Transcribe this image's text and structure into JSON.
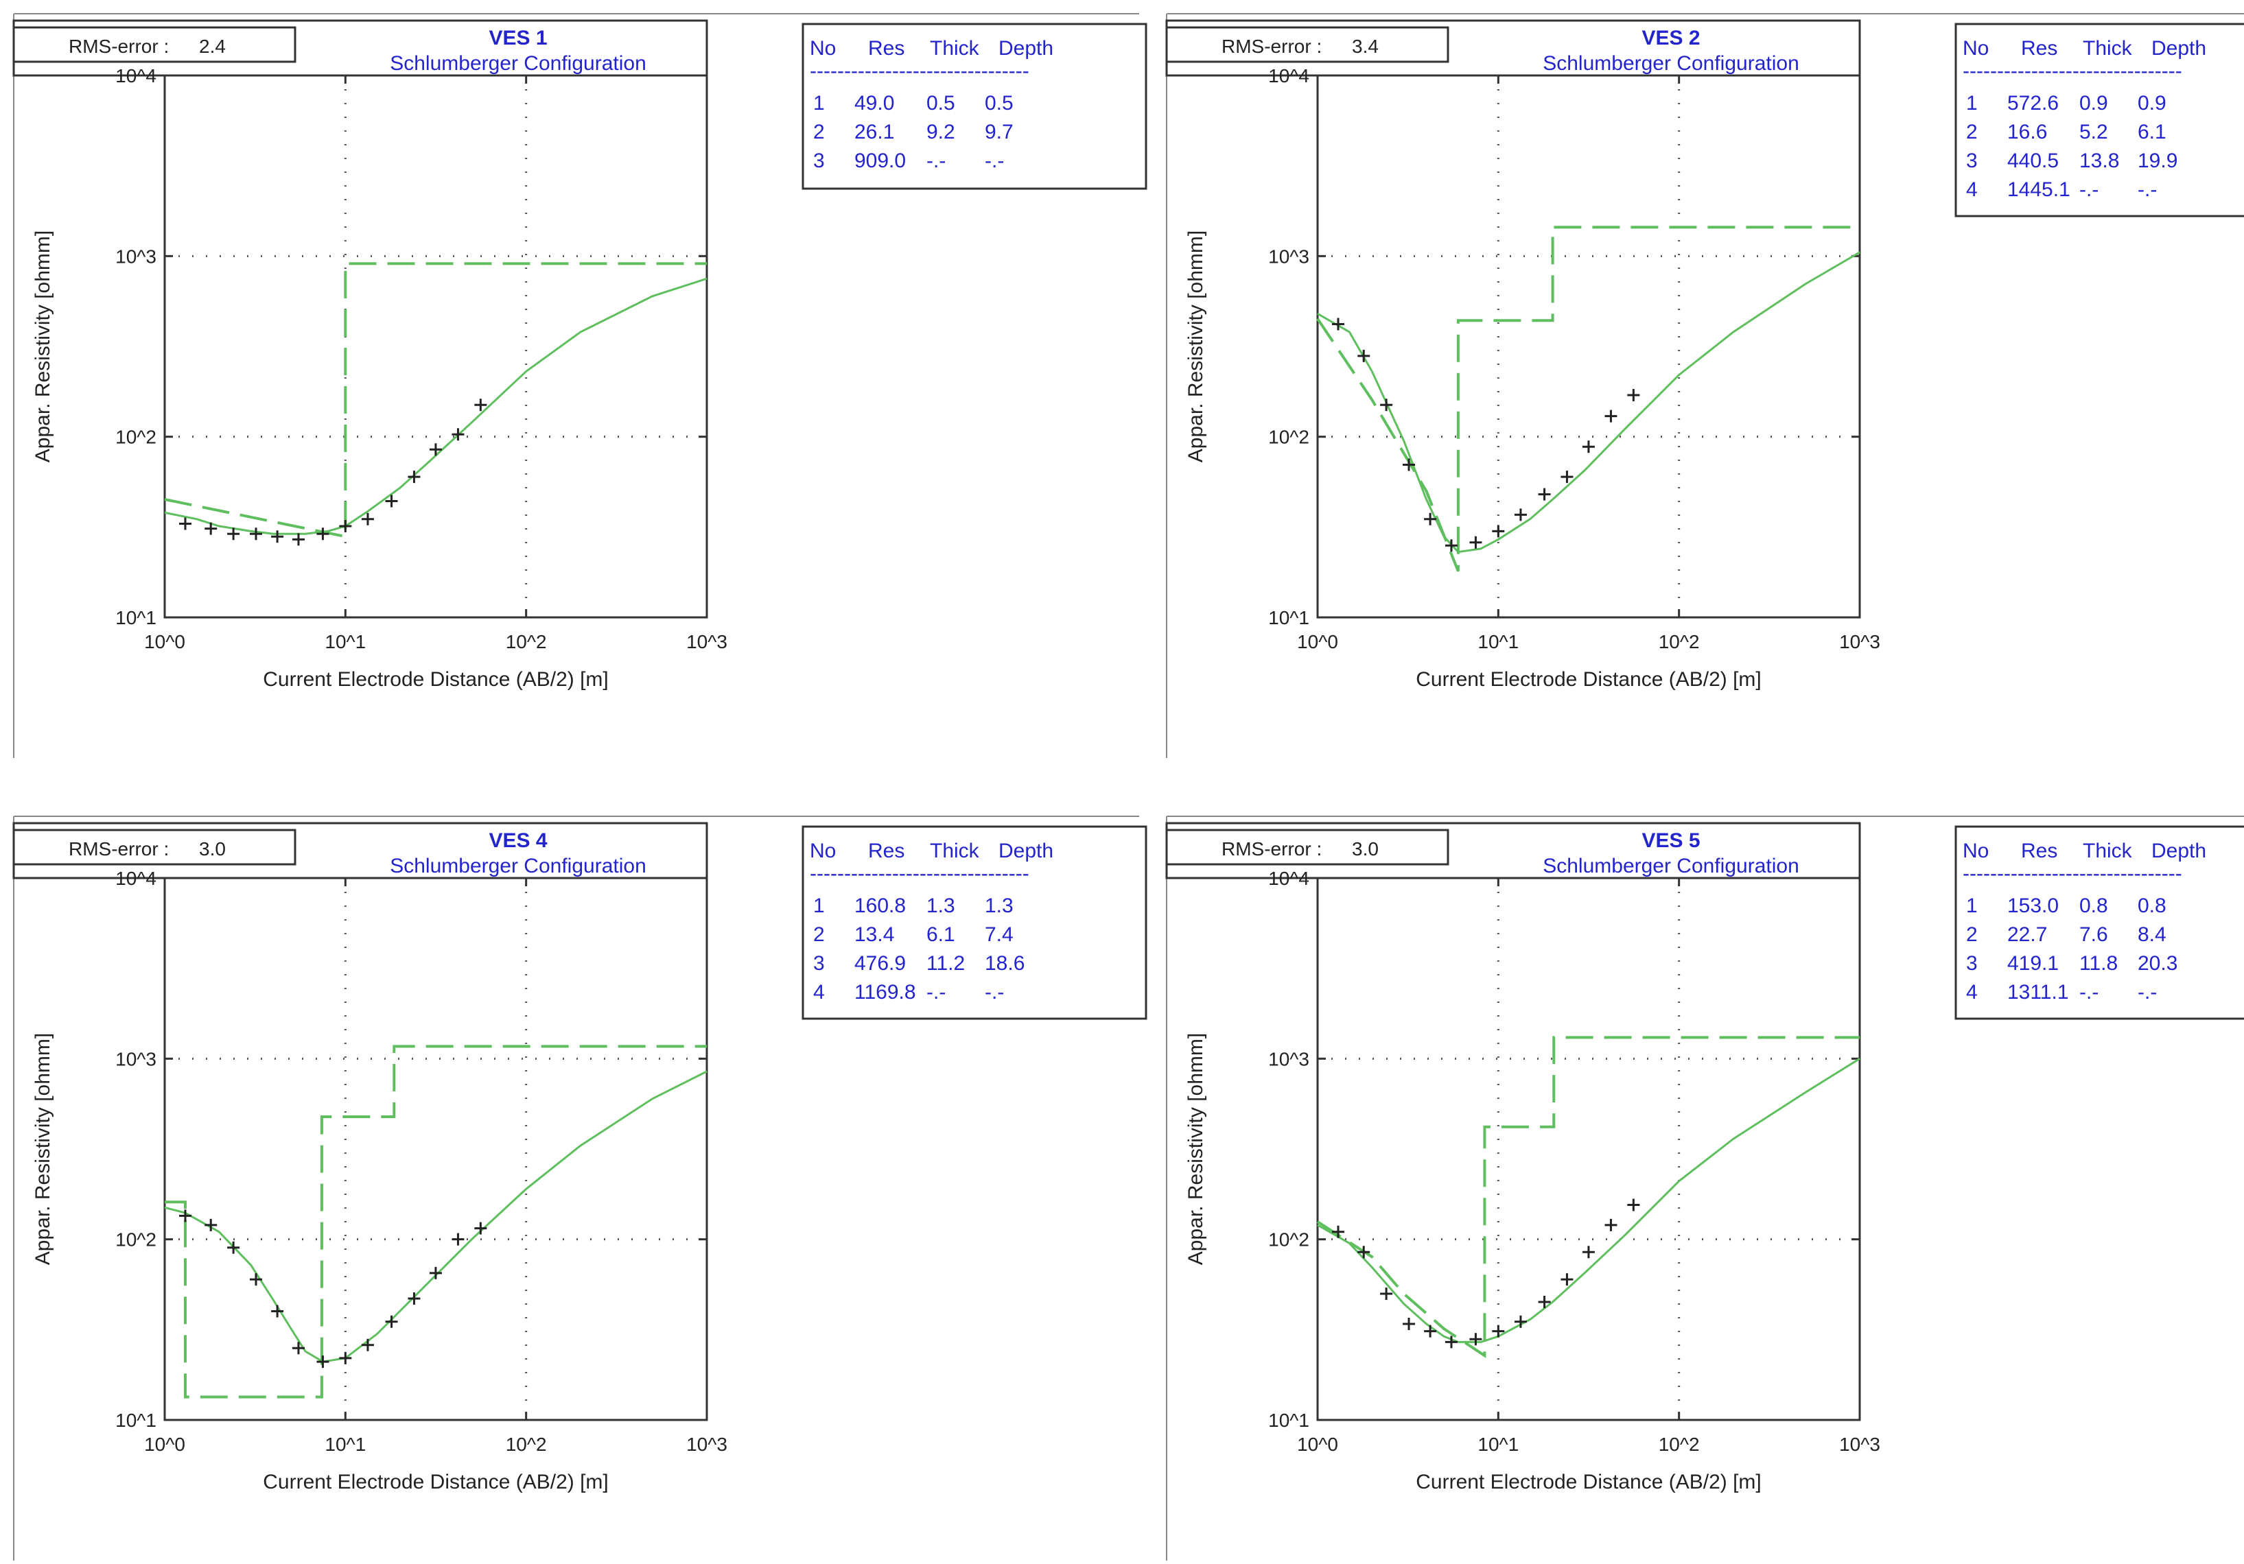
{
  "figure": {
    "x_label": "Current Electrode Distance (AB/2) [m]",
    "y_label": "Appar. Resistivity [ohmm]",
    "x_ticks": [
      "10^0",
      "10^1",
      "10^2",
      "10^3"
    ],
    "y_ticks": [
      "10^1",
      "10^2",
      "10^3",
      "10^4"
    ],
    "rms_label": "RMS-error :",
    "table_headers": [
      "No",
      "Res",
      "Thick",
      "Depth"
    ],
    "table_separator": "--------------------------------",
    "colors": {
      "curve": "#5fbf5f",
      "model": "#5fbf5f",
      "points": "#222222",
      "title": "#2424cc",
      "grid": "#555555"
    }
  },
  "chart_data": [
    {
      "type": "line",
      "title": "VES 1",
      "subtitle": "Schlumberger Configuration",
      "rms_error": "2.4",
      "xlabel": "Current Electrode Distance (AB/2) [m]",
      "ylabel": "Appar. Resistivity [ohmm]",
      "x_scale": "log",
      "y_scale": "log",
      "xlim": [
        1,
        1000
      ],
      "ylim": [
        10,
        10000
      ],
      "layers": [
        {
          "no": "1",
          "res": "49.0",
          "thick": "0.5",
          "depth": "0.5"
        },
        {
          "no": "2",
          "res": "26.1",
          "thick": "9.2",
          "depth": "9.7"
        },
        {
          "no": "3",
          "res": "909.0",
          "thick": "-.-",
          "depth": "-.-"
        }
      ],
      "model_steps": [
        [
          1,
          45
        ],
        [
          10,
          28
        ],
        [
          10,
          909
        ],
        [
          1000,
          909
        ]
      ],
      "calculated_curve": {
        "x": [
          1,
          1.5,
          2,
          3,
          4,
          5,
          6,
          8,
          10,
          13,
          20,
          30,
          50,
          100,
          200,
          500,
          1000
        ],
        "y": [
          38,
          35,
          32,
          30,
          29,
          29,
          29,
          30,
          32,
          38,
          52,
          75,
          120,
          230,
          380,
          600,
          750
        ]
      },
      "observed": {
        "x": [
          1.3,
          1.8,
          2.4,
          3.2,
          4.2,
          5.5,
          7.5,
          10,
          13.3,
          18,
          24,
          31.6,
          42,
          56
        ],
        "y": [
          33,
          31,
          29,
          29,
          28,
          27,
          29,
          32,
          35,
          44,
          60,
          85,
          103,
          150
        ]
      }
    },
    {
      "type": "line",
      "title": "VES 2",
      "subtitle": "Schlumberger Configuration",
      "rms_error": "3.4",
      "xlabel": "Current Electrode Distance (AB/2) [m]",
      "ylabel": "Appar. Resistivity [ohmm]",
      "x_scale": "log",
      "y_scale": "log",
      "xlim": [
        1,
        1000
      ],
      "ylim": [
        10,
        10000
      ],
      "layers": [
        {
          "no": "1",
          "res": "572.6",
          "thick": "0.9",
          "depth": "0.9"
        },
        {
          "no": "2",
          "res": "16.6",
          "thick": "5.2",
          "depth": "6.1"
        },
        {
          "no": "3",
          "res": "440.5",
          "thick": "13.8",
          "depth": "19.9"
        },
        {
          "no": "4",
          "res": "1445.1",
          "thick": "-.-",
          "depth": "-.-"
        }
      ],
      "model_steps": [
        [
          1,
          450
        ],
        [
          2,
          160
        ],
        [
          4,
          50
        ],
        [
          6,
          18
        ],
        [
          6,
          440
        ],
        [
          20,
          440
        ],
        [
          20,
          1445
        ],
        [
          1000,
          1445
        ]
      ],
      "calculated_curve": {
        "x": [
          1,
          1.5,
          2,
          3,
          4,
          5,
          6,
          8,
          10,
          15,
          20,
          30,
          50,
          100,
          200,
          500,
          1000
        ],
        "y": [
          480,
          380,
          230,
          95,
          45,
          28,
          23,
          24,
          27,
          35,
          45,
          65,
          110,
          220,
          380,
          700,
          1050
        ]
      },
      "observed": {
        "x": [
          1.3,
          1.8,
          2.4,
          3.2,
          4.2,
          5.5,
          7.5,
          10,
          13.3,
          18,
          24,
          31.6,
          42,
          56
        ],
        "y": [
          420,
          280,
          150,
          70,
          35,
          25,
          26,
          30,
          37,
          48,
          60,
          88,
          130,
          170
        ]
      }
    },
    {
      "type": "line",
      "title": "VES 4",
      "subtitle": "Schlumberger Configuration",
      "rms_error": "3.0",
      "xlabel": "Current Electrode Distance (AB/2) [m]",
      "ylabel": "Appar. Resistivity [ohmm]",
      "x_scale": "log",
      "y_scale": "log",
      "xlim": [
        1,
        1000
      ],
      "ylim": [
        10,
        10000
      ],
      "layers": [
        {
          "no": "1",
          "res": "160.8",
          "thick": "1.3",
          "depth": "1.3"
        },
        {
          "no": "2",
          "res": "13.4",
          "thick": "6.1",
          "depth": "7.4"
        },
        {
          "no": "3",
          "res": "476.9",
          "thick": "11.2",
          "depth": "18.6"
        },
        {
          "no": "4",
          "res": "1169.8",
          "thick": "-.-",
          "depth": "-.-"
        }
      ],
      "model_steps": [
        [
          1,
          160.8
        ],
        [
          1.3,
          160.8
        ],
        [
          1.3,
          13.4
        ],
        [
          7.4,
          13.4
        ],
        [
          7.4,
          476.9
        ],
        [
          18.6,
          476.9
        ],
        [
          18.6,
          1169.8
        ],
        [
          1000,
          1169.8
        ]
      ],
      "calculated_curve": {
        "x": [
          1,
          1.3,
          2,
          3,
          4,
          5,
          6,
          7.5,
          10,
          15,
          20,
          30,
          50,
          100,
          200,
          500,
          1000
        ],
        "y": [
          150,
          140,
          110,
          72,
          46,
          32,
          24,
          21,
          22,
          30,
          40,
          60,
          100,
          190,
          330,
          600,
          850
        ]
      },
      "observed": {
        "x": [
          1.3,
          1.8,
          2.4,
          3.2,
          4.2,
          5.5,
          7.5,
          10,
          13.3,
          18,
          24,
          31.6,
          42,
          56
        ],
        "y": [
          135,
          120,
          90,
          60,
          40,
          25,
          21,
          22,
          26,
          35,
          47,
          65,
          100,
          115
        ]
      }
    },
    {
      "type": "line",
      "title": "VES 5",
      "subtitle": "Schlumberger Configuration",
      "rms_error": "3.0",
      "xlabel": "Current Electrode Distance (AB/2) [m]",
      "ylabel": "Appar. Resistivity [ohmm]",
      "x_scale": "log",
      "y_scale": "log",
      "xlim": [
        1,
        1000
      ],
      "ylim": [
        10,
        10000
      ],
      "layers": [
        {
          "no": "1",
          "res": "153.0",
          "thick": "0.8",
          "depth": "0.8"
        },
        {
          "no": "2",
          "res": "22.7",
          "thick": "7.6",
          "depth": "8.4"
        },
        {
          "no": "3",
          "res": "419.1",
          "thick": "11.8",
          "depth": "20.3"
        },
        {
          "no": "4",
          "res": "1311.1",
          "thick": "-.-",
          "depth": "-.-"
        }
      ],
      "model_steps": [
        [
          1,
          125
        ],
        [
          2,
          80
        ],
        [
          3,
          50
        ],
        [
          5,
          32
        ],
        [
          8.4,
          22.7
        ],
        [
          8.4,
          419.1
        ],
        [
          20.3,
          419.1
        ],
        [
          20.3,
          1311.1
        ],
        [
          1000,
          1311.1
        ]
      ],
      "calculated_curve": {
        "x": [
          1,
          1.5,
          2,
          3,
          4,
          5,
          6,
          8,
          10,
          15,
          20,
          30,
          50,
          100,
          200,
          500,
          1000
        ],
        "y": [
          120,
          95,
          70,
          44,
          34,
          29,
          27,
          27,
          29,
          36,
          45,
          65,
          105,
          210,
          360,
          650,
          1000
        ]
      },
      "observed": {
        "x": [
          1.3,
          1.8,
          2.4,
          3.2,
          4.2,
          5.5,
          7.5,
          10,
          13.3,
          18,
          24,
          31.6,
          42,
          56
        ],
        "y": [
          110,
          85,
          50,
          34,
          31,
          27,
          28,
          31,
          35,
          45,
          60,
          85,
          120,
          155
        ]
      }
    }
  ]
}
